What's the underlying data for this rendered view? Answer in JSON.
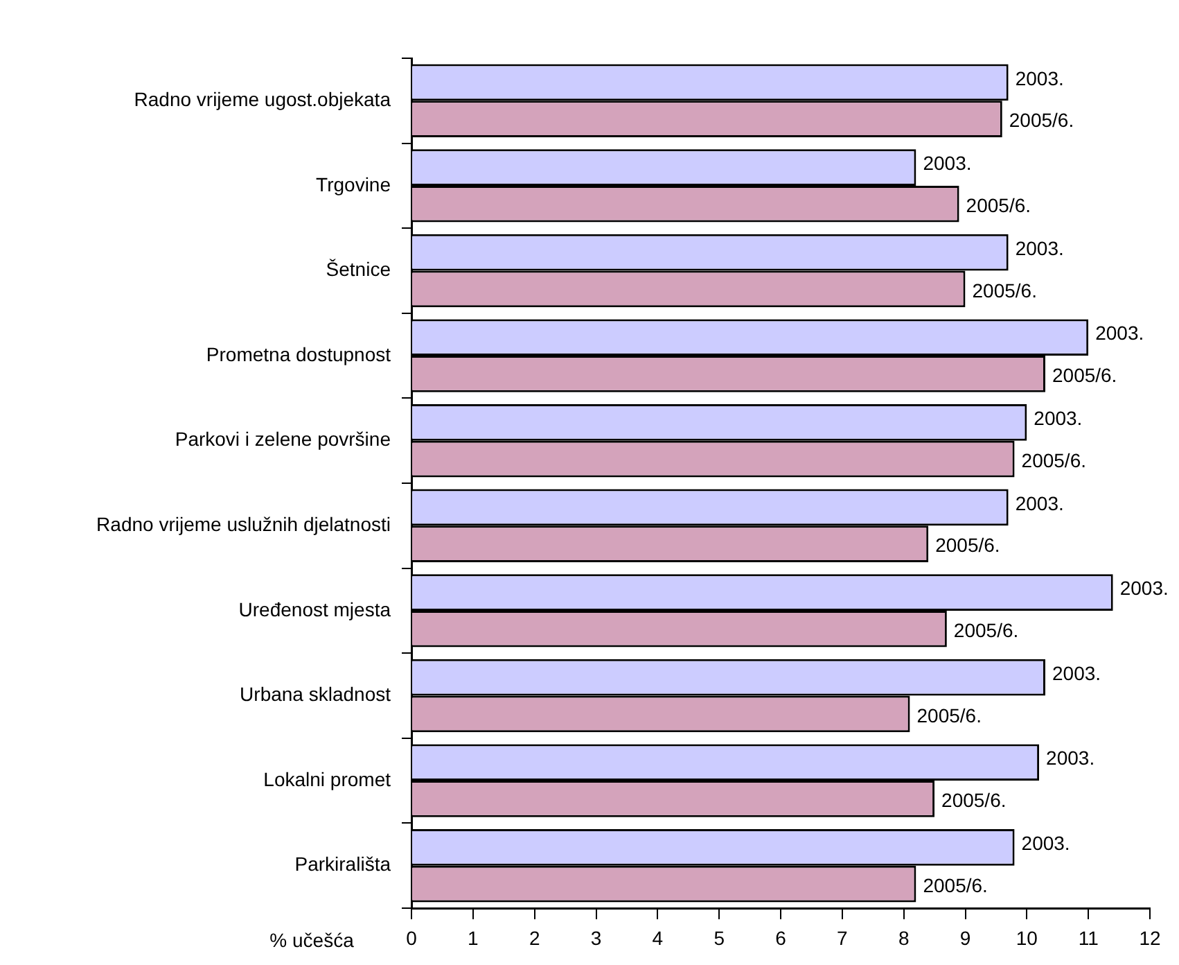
{
  "chart_data": {
    "type": "bar",
    "orientation": "horizontal",
    "xlabel": "% učešća",
    "categories": [
      "Radno vrijeme ugost.objekata",
      "Trgovine",
      "Šetnice",
      "Prometna dostupnost",
      "Parkovi i zelene površine",
      "Radno vrijeme uslužnih djelatnosti",
      "Uređenost mjesta",
      "Urbana skladnost",
      "Lokalni promet",
      "Parkirališta"
    ],
    "series": [
      {
        "name": "2003.",
        "color": "#ccccff",
        "values": [
          9.7,
          8.2,
          9.7,
          11.0,
          10.0,
          9.7,
          11.4,
          10.3,
          10.2,
          9.8
        ]
      },
      {
        "name": "2005/6.",
        "color": "#d4a3bb",
        "values": [
          9.6,
          8.9,
          9.0,
          10.3,
          9.8,
          8.4,
          8.7,
          8.1,
          8.5,
          8.2
        ]
      }
    ],
    "xlim": [
      0,
      12
    ],
    "xticks": [
      0,
      1,
      2,
      3,
      4,
      5,
      6,
      7,
      8,
      9,
      10,
      11,
      12
    ],
    "grid": false,
    "legend": false
  }
}
